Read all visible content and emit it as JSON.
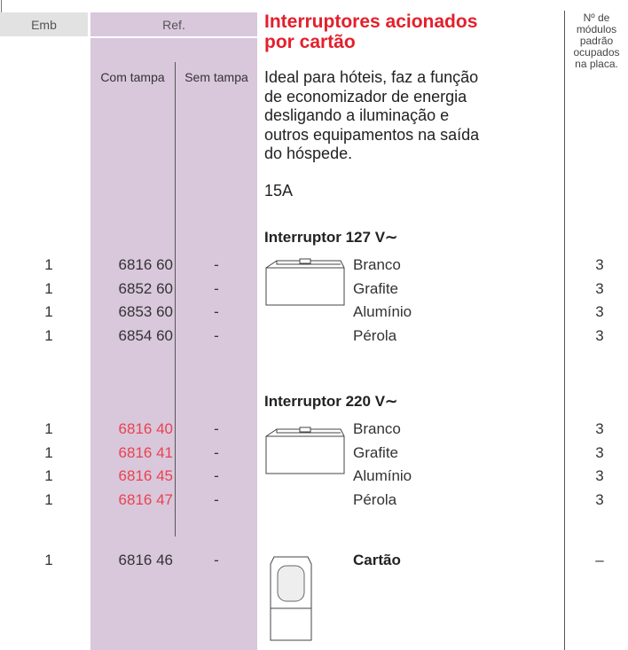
{
  "header": {
    "emb": "Emb",
    "ref": "Ref.",
    "com_tampa": "Com tampa",
    "sem_tampa": "Sem tampa",
    "modules_note": [
      "Nº de",
      "módulos",
      "padrão",
      "ocupados",
      "na placa."
    ]
  },
  "title": [
    "Interruptores acionados",
    "por cartão"
  ],
  "description": [
    "Ideal para hóteis, faz a função",
    "de economizador de energia",
    "desligando a iluminação e",
    "outros equipamentos na saída",
    "do hóspede."
  ],
  "rating": "15A",
  "sections": [
    {
      "heading": "Interruptor 127 V∼",
      "rows": [
        {
          "emb": "1",
          "ref": "6816 60",
          "sem": "-",
          "color": "Branco",
          "modules": "3"
        },
        {
          "emb": "1",
          "ref": "6852 60",
          "sem": "-",
          "color": "Grafite",
          "modules": "3"
        },
        {
          "emb": "1",
          "ref": "6853 60",
          "sem": "-",
          "color": "Alumínio",
          "modules": "3"
        },
        {
          "emb": "1",
          "ref": "6854 60",
          "sem": "-",
          "color": "Pérola",
          "modules": "3"
        }
      ]
    },
    {
      "heading": "Interruptor 220 V∼",
      "rows": [
        {
          "emb": "1",
          "ref": "6816 40",
          "sem": "-",
          "color": "Branco",
          "modules": "3"
        },
        {
          "emb": "1",
          "ref": "6816 41",
          "sem": "-",
          "color": "Grafite",
          "modules": "3"
        },
        {
          "emb": "1",
          "ref": "6816 45",
          "sem": "-",
          "color": "Alumínio",
          "modules": "3"
        },
        {
          "emb": "1",
          "ref": "6816 47",
          "sem": "-",
          "color": "Pérola",
          "modules": "3"
        }
      ]
    }
  ],
  "card": {
    "emb": "1",
    "ref": "6816 46",
    "sem": "-",
    "name": "Cartão",
    "modules": "–"
  }
}
